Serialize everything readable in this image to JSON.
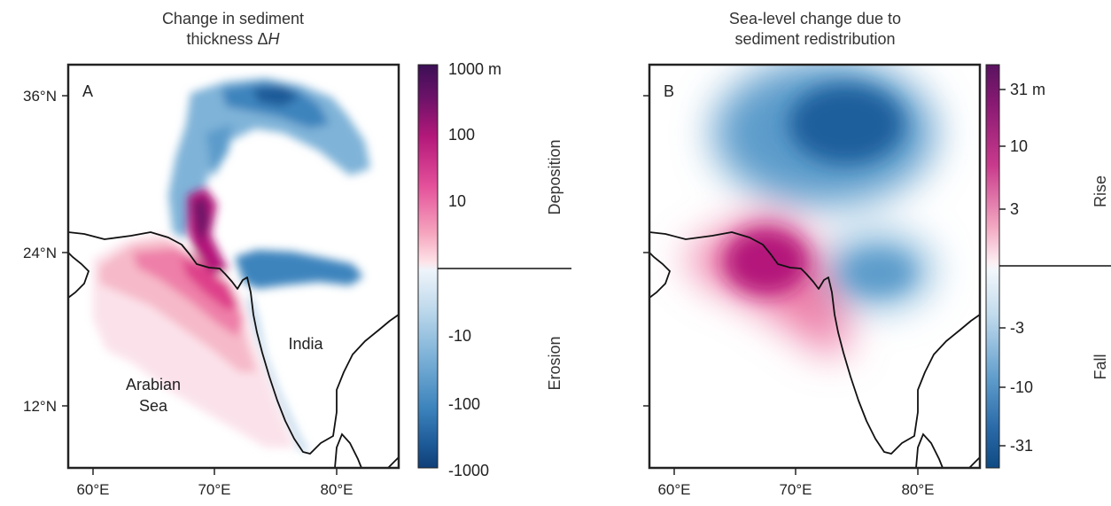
{
  "panels": [
    {
      "letter": "A",
      "title_line1": "Change in sediment",
      "title_line2_prefix": "thickness Δ",
      "title_line2_var": "H",
      "y_ticks": [
        "36°N",
        "24°N",
        "12°N"
      ],
      "x_ticks": [
        "60°E",
        "70°E",
        "80°E"
      ],
      "labels": {
        "india": "India",
        "sea_line1": "Arabian",
        "sea_line2": "Sea"
      },
      "colorbar": {
        "ticks": [
          "1000 m",
          "100",
          "10",
          "-10",
          "-100",
          "-1000"
        ],
        "upper_label": "Deposition",
        "lower_label": "Erosion"
      }
    },
    {
      "letter": "B",
      "title_line1": "Sea-level change due to",
      "title_line2": "sediment redistribution",
      "x_ticks": [
        "60°E",
        "70°E",
        "80°E"
      ],
      "colorbar": {
        "ticks": [
          "31 m",
          "10",
          "3",
          "-3",
          "-10",
          "-31"
        ],
        "upper_label": "Rise",
        "lower_label": "Fall"
      }
    }
  ],
  "colors": {
    "deposition_scale": [
      "#fbe6ea",
      "#f6b9c9",
      "#ee7fa8",
      "#de3f8a",
      "#b4197a",
      "#6b1268",
      "#3c0f55"
    ],
    "erosion_scale": [
      "#e9f1f8",
      "#bcd6ea",
      "#8ab9db",
      "#5b9bcb",
      "#3a7fb9",
      "#1f5f9c",
      "#0f3f78"
    ],
    "coastline": "#111111"
  }
}
